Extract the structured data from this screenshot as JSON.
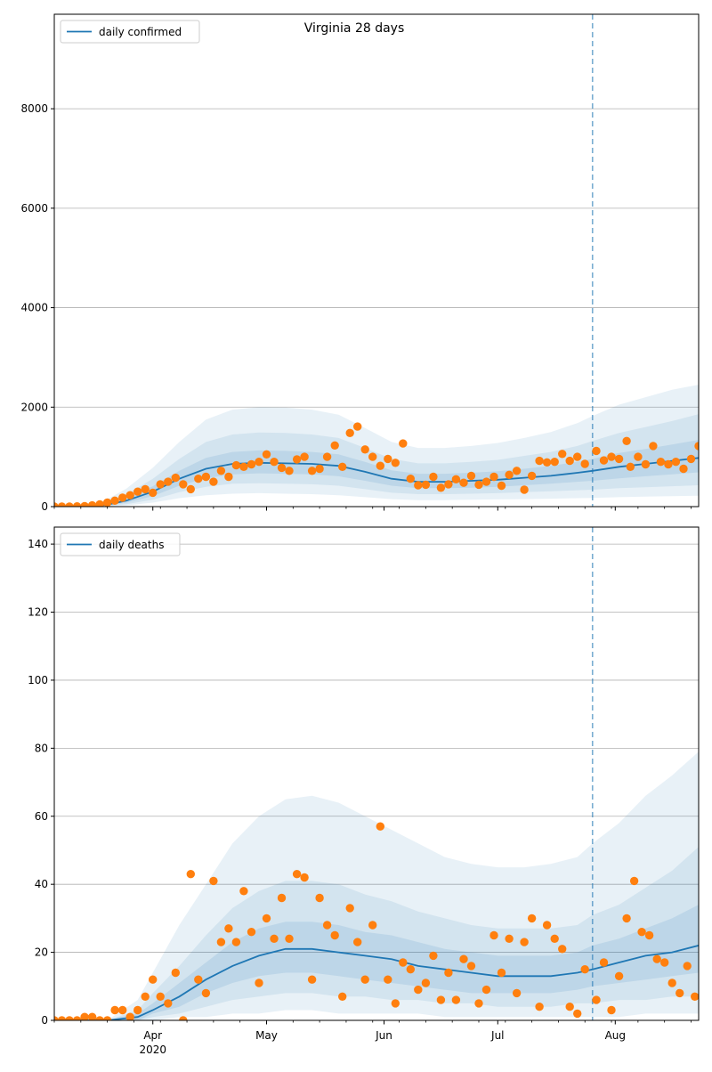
{
  "figure_title": "Virginia 28 days",
  "colors": {
    "model_line": "#1f77b4",
    "observed": "#ff7f0e",
    "band": "#1f77b4",
    "grid": "#b0b0b0"
  },
  "chart_data": [
    {
      "type": "line",
      "legend": "daily confirmed",
      "legend_position": "top-left",
      "grid": "y",
      "x_start": "2020-03-06",
      "x_end": "2020-08-23",
      "forecast_marker": "2020-07-26",
      "ylim": [
        0,
        9900
      ],
      "yticks": [
        0,
        2000,
        4000,
        6000,
        8000
      ],
      "xticks": [
        {
          "date": "2020-04-01",
          "label": "Apr",
          "sublabel": "2020"
        },
        {
          "date": "2020-05-01",
          "label": "May",
          "sublabel": ""
        },
        {
          "date": "2020-06-01",
          "label": "Jun",
          "sublabel": ""
        },
        {
          "date": "2020-07-01",
          "label": "Jul",
          "sublabel": ""
        },
        {
          "date": "2020-08-01",
          "label": "Aug",
          "sublabel": ""
        }
      ],
      "model": {
        "x": [
          "2020-03-06",
          "2020-03-15",
          "2020-03-20",
          "2020-03-25",
          "2020-04-01",
          "2020-04-08",
          "2020-04-15",
          "2020-04-22",
          "2020-04-29",
          "2020-05-06",
          "2020-05-13",
          "2020-05-20",
          "2020-05-27",
          "2020-06-03",
          "2020-06-10",
          "2020-06-17",
          "2020-06-24",
          "2020-07-01",
          "2020-07-08",
          "2020-07-15",
          "2020-07-22",
          "2020-07-26",
          "2020-08-02",
          "2020-08-09",
          "2020-08-16",
          "2020-08-23"
        ],
        "median": [
          0,
          0,
          40,
          120,
          300,
          560,
          760,
          860,
          880,
          870,
          860,
          820,
          700,
          560,
          500,
          500,
          520,
          540,
          580,
          620,
          680,
          720,
          800,
          860,
          920,
          980
        ],
        "q25": [
          0,
          0,
          25,
          80,
          210,
          420,
          570,
          650,
          670,
          660,
          650,
          610,
          520,
          420,
          370,
          370,
          380,
          400,
          430,
          460,
          500,
          520,
          570,
          610,
          650,
          690
        ],
        "q75": [
          0,
          0,
          60,
          170,
          410,
          720,
          980,
          1100,
          1130,
          1120,
          1100,
          1050,
          900,
          730,
          660,
          660,
          680,
          710,
          760,
          820,
          900,
          960,
          1080,
          1160,
          1250,
          1340
        ],
        "q10": [
          0,
          0,
          15,
          50,
          140,
          290,
          400,
          460,
          470,
          460,
          450,
          420,
          350,
          280,
          250,
          250,
          260,
          270,
          290,
          310,
          330,
          340,
          370,
          390,
          410,
          430
        ],
        "q90": [
          0,
          0,
          90,
          250,
          560,
          960,
          1300,
          1450,
          1490,
          1480,
          1450,
          1380,
          1180,
          960,
          870,
          870,
          900,
          940,
          1020,
          1100,
          1220,
          1320,
          1480,
          1600,
          1720,
          1860
        ],
        "q02": [
          0,
          0,
          5,
          25,
          80,
          170,
          230,
          260,
          270,
          260,
          250,
          230,
          190,
          150,
          130,
          130,
          140,
          145,
          150,
          160,
          170,
          175,
          190,
          200,
          210,
          220
        ],
        "q98": [
          0,
          0,
          150,
          360,
          780,
          1300,
          1750,
          1950,
          2000,
          1990,
          1950,
          1850,
          1580,
          1300,
          1180,
          1180,
          1220,
          1280,
          1380,
          1500,
          1680,
          1820,
          2050,
          2200,
          2350,
          2450
        ]
      },
      "observed": {
        "x": [
          "2020-03-06",
          "2020-03-08",
          "2020-03-10",
          "2020-03-12",
          "2020-03-14",
          "2020-03-16",
          "2020-03-18",
          "2020-03-20",
          "2020-03-22",
          "2020-03-24",
          "2020-03-26",
          "2020-03-28",
          "2020-03-30",
          "2020-04-01",
          "2020-04-03",
          "2020-04-05",
          "2020-04-07",
          "2020-04-09",
          "2020-04-11",
          "2020-04-13",
          "2020-04-15",
          "2020-04-17",
          "2020-04-19",
          "2020-04-21",
          "2020-04-23",
          "2020-04-25",
          "2020-04-27",
          "2020-04-29",
          "2020-05-01",
          "2020-05-03",
          "2020-05-05",
          "2020-05-07",
          "2020-05-09",
          "2020-05-11",
          "2020-05-13",
          "2020-05-15",
          "2020-05-17",
          "2020-05-19",
          "2020-05-21",
          "2020-05-23",
          "2020-05-25",
          "2020-05-27",
          "2020-05-29",
          "2020-05-31",
          "2020-06-02",
          "2020-06-04",
          "2020-06-06",
          "2020-06-08",
          "2020-06-10",
          "2020-06-12",
          "2020-06-14",
          "2020-06-16",
          "2020-06-18",
          "2020-06-20",
          "2020-06-22",
          "2020-06-24",
          "2020-06-26",
          "2020-06-28",
          "2020-06-30",
          "2020-07-02",
          "2020-07-04",
          "2020-07-06",
          "2020-07-08",
          "2020-07-10",
          "2020-07-12",
          "2020-07-14",
          "2020-07-16",
          "2020-07-18",
          "2020-07-20",
          "2020-07-22",
          "2020-07-24",
          "2020-07-27",
          "2020-07-29",
          "2020-07-31",
          "2020-08-02",
          "2020-08-04",
          "2020-08-05",
          "2020-08-07",
          "2020-08-09",
          "2020-08-11",
          "2020-08-13",
          "2020-08-15",
          "2020-08-17",
          "2020-08-19",
          "2020-08-21",
          "2020-08-23"
        ],
        "y": [
          0,
          0,
          2,
          5,
          10,
          25,
          45,
          80,
          120,
          180,
          230,
          300,
          350,
          280,
          450,
          500,
          580,
          450,
          350,
          560,
          600,
          500,
          720,
          600,
          830,
          800,
          850,
          900,
          1050,
          900,
          780,
          720,
          950,
          1000,
          720,
          760,
          1000,
          1230,
          800,
          1480,
          1610,
          1150,
          1000,
          820,
          960,
          880,
          1270,
          560,
          430,
          440,
          600,
          380,
          450,
          550,
          480,
          620,
          440,
          500,
          600,
          420,
          640,
          720,
          340,
          620,
          920,
          890,
          900,
          1060,
          920,
          1000,
          860,
          1120,
          930,
          1000,
          960,
          1320,
          800,
          1000,
          850,
          1220,
          900,
          850,
          900,
          760,
          960,
          1220
        ]
      }
    },
    {
      "type": "line",
      "legend": "daily deaths",
      "legend_position": "top-left",
      "grid": "y",
      "x_start": "2020-03-06",
      "x_end": "2020-08-23",
      "forecast_marker": "2020-07-26",
      "ylim": [
        0,
        145
      ],
      "yticks": [
        0,
        20,
        40,
        60,
        80,
        100,
        120,
        140
      ],
      "xticks": [
        {
          "date": "2020-04-01",
          "label": "Apr",
          "sublabel": "2020"
        },
        {
          "date": "2020-05-01",
          "label": "May",
          "sublabel": ""
        },
        {
          "date": "2020-06-01",
          "label": "Jun",
          "sublabel": ""
        },
        {
          "date": "2020-07-01",
          "label": "Jul",
          "sublabel": ""
        },
        {
          "date": "2020-08-01",
          "label": "Aug",
          "sublabel": ""
        }
      ],
      "model": {
        "x": [
          "2020-03-06",
          "2020-03-20",
          "2020-03-28",
          "2020-04-01",
          "2020-04-08",
          "2020-04-15",
          "2020-04-22",
          "2020-04-29",
          "2020-05-06",
          "2020-05-13",
          "2020-05-20",
          "2020-05-27",
          "2020-06-03",
          "2020-06-10",
          "2020-06-17",
          "2020-06-24",
          "2020-07-01",
          "2020-07-08",
          "2020-07-15",
          "2020-07-22",
          "2020-07-26",
          "2020-08-02",
          "2020-08-09",
          "2020-08-16",
          "2020-08-23"
        ],
        "median": [
          0,
          0,
          1,
          3,
          7,
          12,
          16,
          19,
          21,
          21,
          20,
          19,
          18,
          16,
          15,
          14,
          13,
          13,
          13,
          14,
          15,
          17,
          19,
          20,
          22
        ],
        "q25": [
          0,
          0,
          0,
          2,
          4,
          8,
          11,
          13,
          14,
          14,
          13,
          12,
          11,
          10,
          9,
          8,
          8,
          8,
          8,
          9,
          10,
          11,
          12,
          13,
          14
        ],
        "q75": [
          0,
          0,
          2,
          5,
          11,
          17,
          23,
          27,
          29,
          29,
          28,
          26,
          25,
          23,
          21,
          20,
          19,
          19,
          19,
          20,
          22,
          24,
          27,
          30,
          34
        ],
        "q10": [
          0,
          0,
          0,
          1,
          2,
          4,
          6,
          7,
          8,
          8,
          7,
          7,
          6,
          6,
          5,
          5,
          4,
          4,
          4,
          5,
          5,
          6,
          6,
          7,
          7
        ],
        "q90": [
          0,
          0,
          3,
          8,
          16,
          25,
          33,
          38,
          41,
          41,
          40,
          37,
          35,
          32,
          30,
          28,
          27,
          27,
          27,
          28,
          31,
          34,
          39,
          44,
          51
        ],
        "q02": [
          0,
          0,
          0,
          0,
          1,
          1,
          2,
          2,
          3,
          3,
          2,
          2,
          2,
          2,
          1,
          1,
          1,
          1,
          1,
          1,
          1,
          1,
          2,
          2,
          2
        ],
        "q98": [
          0,
          0,
          6,
          14,
          28,
          40,
          52,
          60,
          65,
          66,
          64,
          60,
          56,
          52,
          48,
          46,
          45,
          45,
          46,
          48,
          52,
          58,
          66,
          72,
          79
        ]
      },
      "observed": {
        "x": [
          "2020-03-06",
          "2020-03-08",
          "2020-03-10",
          "2020-03-12",
          "2020-03-14",
          "2020-03-16",
          "2020-03-18",
          "2020-03-20",
          "2020-03-22",
          "2020-03-24",
          "2020-03-26",
          "2020-03-28",
          "2020-03-30",
          "2020-04-01",
          "2020-04-03",
          "2020-04-05",
          "2020-04-07",
          "2020-04-09",
          "2020-04-11",
          "2020-04-13",
          "2020-04-15",
          "2020-04-17",
          "2020-04-19",
          "2020-04-21",
          "2020-04-23",
          "2020-04-25",
          "2020-04-27",
          "2020-04-29",
          "2020-05-01",
          "2020-05-03",
          "2020-05-05",
          "2020-05-07",
          "2020-05-09",
          "2020-05-11",
          "2020-05-13",
          "2020-05-15",
          "2020-05-17",
          "2020-05-19",
          "2020-05-21",
          "2020-05-23",
          "2020-05-25",
          "2020-05-27",
          "2020-05-29",
          "2020-05-31",
          "2020-06-02",
          "2020-06-04",
          "2020-06-06",
          "2020-06-08",
          "2020-06-10",
          "2020-06-12",
          "2020-06-14",
          "2020-06-16",
          "2020-06-18",
          "2020-06-20",
          "2020-06-22",
          "2020-06-24",
          "2020-06-26",
          "2020-06-28",
          "2020-06-30",
          "2020-07-02",
          "2020-07-04",
          "2020-07-06",
          "2020-07-08",
          "2020-07-10",
          "2020-07-12",
          "2020-07-14",
          "2020-07-16",
          "2020-07-18",
          "2020-07-20",
          "2020-07-22",
          "2020-07-24",
          "2020-07-27",
          "2020-07-29",
          "2020-07-31",
          "2020-08-02",
          "2020-08-04",
          "2020-08-06",
          "2020-08-08",
          "2020-08-10",
          "2020-08-12",
          "2020-08-14",
          "2020-08-16",
          "2020-08-18",
          "2020-08-20",
          "2020-08-22"
        ],
        "y": [
          0,
          0,
          0,
          0,
          1,
          1,
          0,
          0,
          3,
          3,
          1,
          3,
          7,
          12,
          7,
          5,
          14,
          0,
          43,
          12,
          8,
          41,
          23,
          27,
          23,
          38,
          26,
          11,
          30,
          24,
          36,
          24,
          43,
          42,
          12,
          36,
          28,
          25,
          7,
          33,
          23,
          12,
          28,
          57,
          12,
          5,
          17,
          15,
          9,
          11,
          19,
          6,
          14,
          6,
          18,
          16,
          5,
          9,
          25,
          14,
          24,
          8,
          23,
          30,
          4,
          28,
          24,
          21,
          4,
          2,
          15,
          6,
          17,
          3,
          13,
          30,
          41,
          26,
          25,
          18,
          17,
          11,
          8,
          16,
          7
        ]
      }
    }
  ]
}
